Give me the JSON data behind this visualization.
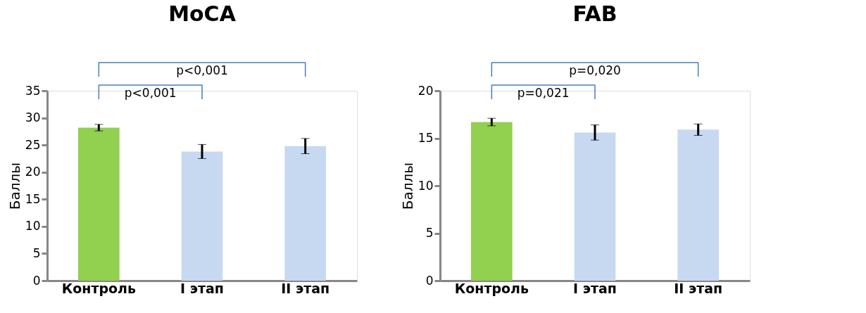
{
  "chart_data": [
    {
      "type": "bar",
      "title": "MoCA",
      "ylabel": "Баллы",
      "categories": [
        "Контроль",
        "I этап",
        "II этап"
      ],
      "values": [
        28.2,
        23.8,
        24.8
      ],
      "errors": [
        0.6,
        1.3,
        1.4
      ],
      "colors": [
        "#92d050",
        "#c6d9f1",
        "#c6d9f1"
      ],
      "ylim": [
        0,
        35
      ],
      "yticks": [
        0,
        5,
        10,
        15,
        20,
        25,
        30,
        35
      ],
      "grid": false,
      "legend": false,
      "annotations": [
        "p<0,001",
        "p<0,001"
      ]
    },
    {
      "type": "bar",
      "title": "FAB",
      "ylabel": "Баллы",
      "categories": [
        "Контроль",
        "I этап",
        "II этап"
      ],
      "values": [
        16.7,
        15.6,
        15.9
      ],
      "errors": [
        0.4,
        0.8,
        0.6
      ],
      "colors": [
        "#92d050",
        "#c6d9f1",
        "#c6d9f1"
      ],
      "ylim": [
        0,
        20
      ],
      "yticks": [
        0,
        5,
        10,
        15,
        20
      ],
      "grid": false,
      "legend": false,
      "annotations": [
        "p=0,021",
        "p=0,020"
      ]
    }
  ]
}
